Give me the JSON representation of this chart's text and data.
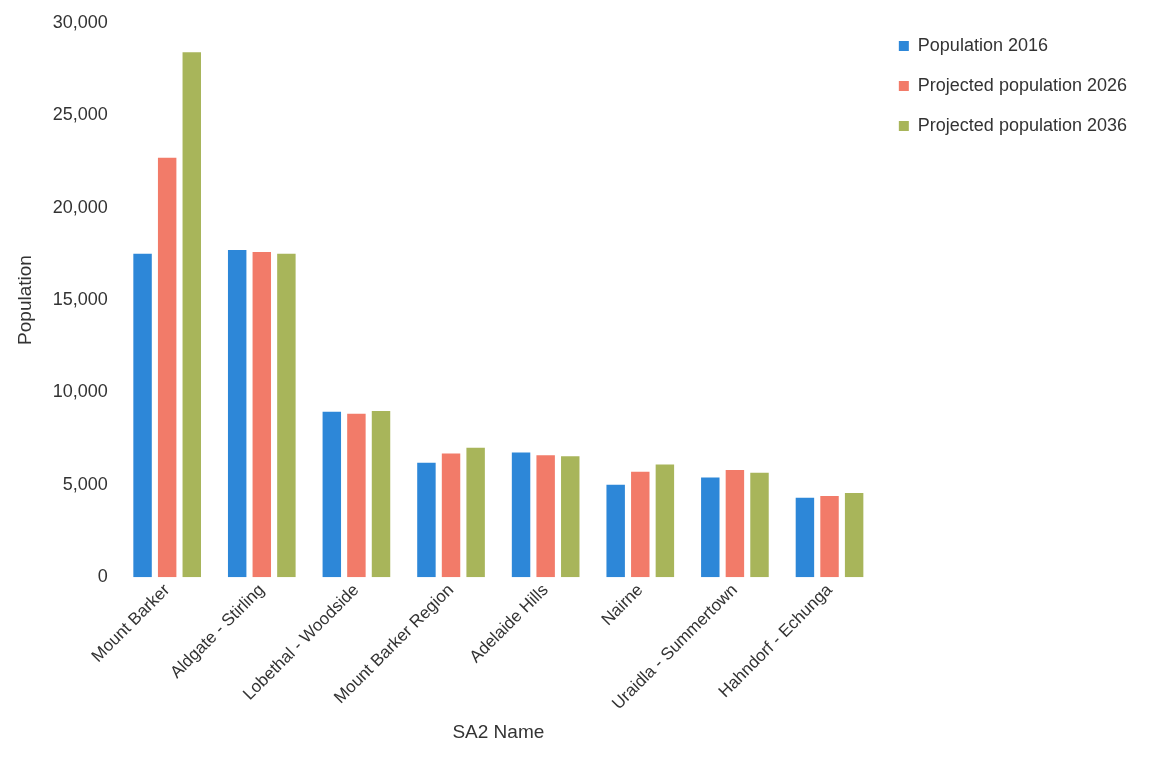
{
  "chart_data": {
    "type": "bar",
    "xlabel": "SA2 Name",
    "ylabel": "Population",
    "categories": [
      "Mount Barker",
      "Aldgate - Stirling",
      "Lobethal - Woodside",
      "Mount Barker Region",
      "Adelaide Hills",
      "Nairne",
      "Uraidla - Summertown",
      "Hahndorf - Echunga"
    ],
    "series": [
      {
        "name": "Population 2016",
        "color": "#2d87d8",
        "values": [
          17500,
          17700,
          8950,
          6200,
          6750,
          5000,
          5400,
          4300
        ]
      },
      {
        "name": "Projected population 2026",
        "color": "#f27b69",
        "values": [
          22700,
          17600,
          8850,
          6700,
          6600,
          5700,
          5800,
          4400
        ]
      },
      {
        "name": "Projected population 2036",
        "color": "#a8b55a",
        "values": [
          28400,
          17500,
          9000,
          7000,
          6550,
          6100,
          5650,
          4550
        ]
      }
    ],
    "ylim": [
      0,
      30000
    ],
    "yticks": [
      {
        "value": 0,
        "label": "0"
      },
      {
        "value": 5000,
        "label": "5,000"
      },
      {
        "value": 10000,
        "label": "10,000"
      },
      {
        "value": 15000,
        "label": "15,000"
      },
      {
        "value": 20000,
        "label": "20,000"
      },
      {
        "value": 25000,
        "label": "25,000"
      },
      {
        "value": 30000,
        "label": "30,000"
      }
    ],
    "grid": false,
    "legend": "top right"
  }
}
